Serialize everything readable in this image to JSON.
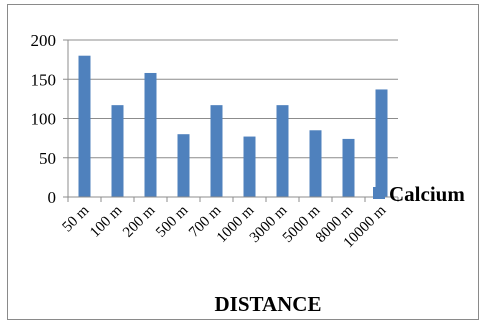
{
  "chart_data": {
    "type": "bar",
    "categories": [
      "50 m",
      "100 m",
      "200 m",
      "500 m",
      "700 m",
      "1000 m",
      "3000 m",
      "5000 m",
      "8000 m",
      "10000 m"
    ],
    "series": [
      {
        "name": "Calcium",
        "values": [
          180,
          117,
          158,
          80,
          117,
          77,
          117,
          85,
          74,
          137
        ]
      }
    ],
    "yticks": [
      "0",
      "50",
      "100",
      "150",
      "200"
    ],
    "ylim": [
      0,
      200
    ],
    "xlabel": "DISTANCE",
    "ylabel": "",
    "title": "",
    "grid": true,
    "legend_position": "right",
    "colors": {
      "bar": "#4f81bd",
      "grid": "#8c8c8c",
      "axis": "#8c8c8c"
    }
  }
}
